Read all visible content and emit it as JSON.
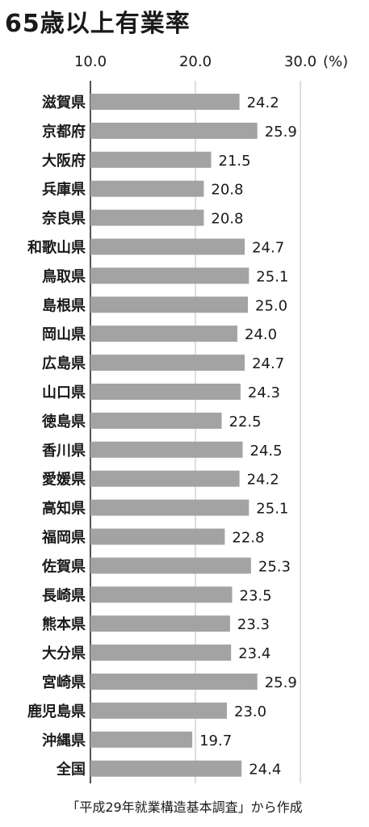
{
  "title": "65歳以上有業率",
  "source": "「平成29年就業構造基本調査」から作成",
  "colors": {
    "bar": "#a3a3a3",
    "axis": "#1a1a1a",
    "gridline": "#bdbdbd",
    "text": "#1a1a1a"
  },
  "chart_data": {
    "type": "bar",
    "orientation": "horizontal",
    "title": "65歳以上有業率",
    "unit": "(%)",
    "xlim": [
      10.0,
      30.0
    ],
    "xticks": [
      "10.0",
      "20.0",
      "30.0"
    ],
    "grid": true,
    "categories": [
      "滋賀県",
      "京都府",
      "大阪府",
      "兵庫県",
      "奈良県",
      "和歌山県",
      "鳥取県",
      "島根県",
      "岡山県",
      "広島県",
      "山口県",
      "徳島県",
      "香川県",
      "愛媛県",
      "高知県",
      "福岡県",
      "佐賀県",
      "長崎県",
      "熊本県",
      "大分県",
      "宮崎県",
      "鹿児島県",
      "沖縄県",
      "全国"
    ],
    "values": [
      24.2,
      25.9,
      21.5,
      20.8,
      20.8,
      24.7,
      25.1,
      25.0,
      24.0,
      24.7,
      24.3,
      22.5,
      24.5,
      24.2,
      25.1,
      22.8,
      25.3,
      23.5,
      23.3,
      23.4,
      25.9,
      23.0,
      19.7,
      24.4
    ],
    "value_labels": [
      "24.2",
      "25.9",
      "21.5",
      "20.8",
      "20.8",
      "24.7",
      "25.1",
      "25.0",
      "24.0",
      "24.7",
      "24.3",
      "22.5",
      "24.5",
      "24.2",
      "25.1",
      "22.8",
      "25.3",
      "23.5",
      "23.3",
      "23.4",
      "25.9",
      "23.0",
      "19.7",
      "24.4"
    ]
  }
}
